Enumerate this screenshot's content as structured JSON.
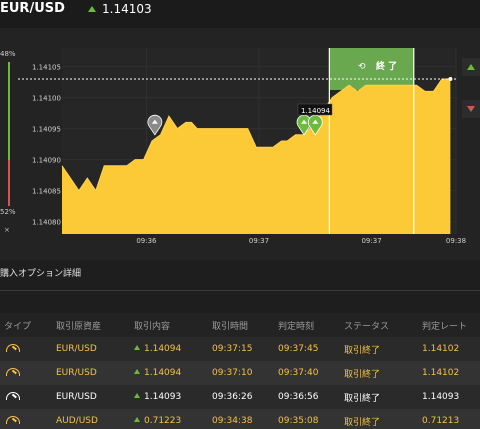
{
  "header": {
    "pair": "EUR/USD",
    "price": "1.14103",
    "direction_icon": "arrow-up-icon"
  },
  "gauge": {
    "top_pct": "48%",
    "bottom_pct": "52%",
    "close_label": "×"
  },
  "chart": {
    "end_label": "終 了",
    "tooltip": "1.14094",
    "y_ticks": [
      "1.14105",
      "1.14100",
      "1.14095",
      "1.14090",
      "1.14085",
      "1.14080"
    ],
    "x_ticks": [
      "09:36",
      "09:37",
      "09:37",
      "09:38"
    ],
    "colors": {
      "area": "#fcc937",
      "end_zone": "#6aa84f",
      "up": "#6dbb3c",
      "down": "#d9534f"
    }
  },
  "chart_data": {
    "type": "area",
    "x": [
      "09:35:40",
      "09:35:43",
      "09:35:46",
      "09:35:49",
      "09:35:52",
      "09:35:55",
      "09:35:58",
      "09:36:00",
      "09:36:03",
      "09:36:06",
      "09:36:09",
      "09:36:12",
      "09:36:15",
      "09:36:18",
      "09:36:21",
      "09:36:24",
      "09:36:26",
      "09:36:28",
      "09:36:31",
      "09:36:34",
      "09:36:37",
      "09:36:40",
      "09:36:43",
      "09:36:46",
      "09:36:49",
      "09:36:52",
      "09:36:55",
      "09:36:58",
      "09:37:00",
      "09:37:03",
      "09:37:06",
      "09:37:10",
      "09:37:13",
      "09:37:16",
      "09:37:19",
      "09:37:22",
      "09:37:25",
      "09:37:28",
      "09:37:31",
      "09:37:34",
      "09:37:37",
      "09:37:40",
      "09:37:43",
      "09:37:46",
      "09:37:49",
      "09:37:52",
      "09:37:55",
      "09:37:58"
    ],
    "y": [
      1.14089,
      1.14087,
      1.14085,
      1.14087,
      1.14085,
      1.14089,
      1.14089,
      1.14089,
      1.14089,
      1.1409,
      1.1409,
      1.14093,
      1.14094,
      1.14097,
      1.14095,
      1.14096,
      1.14096,
      1.14095,
      1.14095,
      1.14095,
      1.14095,
      1.14095,
      1.14095,
      1.14095,
      1.14092,
      1.14092,
      1.14092,
      1.14093,
      1.14093,
      1.14094,
      1.14094,
      1.14096,
      1.14098,
      1.141,
      1.14101,
      1.14102,
      1.14101,
      1.14102,
      1.14102,
      1.14102,
      1.14102,
      1.14102,
      1.14102,
      1.14102,
      1.14101,
      1.14101,
      1.14103,
      1.14103
    ],
    "ylim": [
      1.14078,
      1.14108
    ],
    "xlabel": "",
    "ylabel": "",
    "grid": true,
    "markers": [
      {
        "x": "09:36:13",
        "y": 1.14094,
        "kind": "neutral"
      },
      {
        "x": "09:37:06",
        "y": 1.14094,
        "kind": "up"
      },
      {
        "x": "09:37:10",
        "y": 1.14094,
        "kind": "up"
      }
    ],
    "expiry_lines": [
      "09:37:15",
      "09:37:45"
    ],
    "reference_line": 1.14103
  },
  "section_title": "購入オプション詳細",
  "table": {
    "headers": [
      "タイプ",
      "取引原資産",
      "取引内容",
      "取引時間",
      "判定時刻",
      "ステータス",
      "判定レート"
    ],
    "rows": [
      {
        "asset": "EUR/USD",
        "content": "1.14094",
        "time": "09:37:15",
        "judge": "09:37:45",
        "status": "取引終了",
        "rate": "1.14102",
        "highlight": true
      },
      {
        "asset": "EUR/USD",
        "content": "1.14094",
        "time": "09:37:10",
        "judge": "09:37:40",
        "status": "取引終了",
        "rate": "1.14102",
        "highlight": true
      },
      {
        "asset": "EUR/USD",
        "content": "1.14093",
        "time": "09:36:26",
        "judge": "09:36:56",
        "status": "取引終了",
        "rate": "1.14093",
        "highlight": false
      },
      {
        "asset": "AUD/USD",
        "content": "0.71223",
        "time": "09:34:38",
        "judge": "09:35:08",
        "status": "取引終了",
        "rate": "0.71213",
        "highlight": true
      }
    ]
  }
}
